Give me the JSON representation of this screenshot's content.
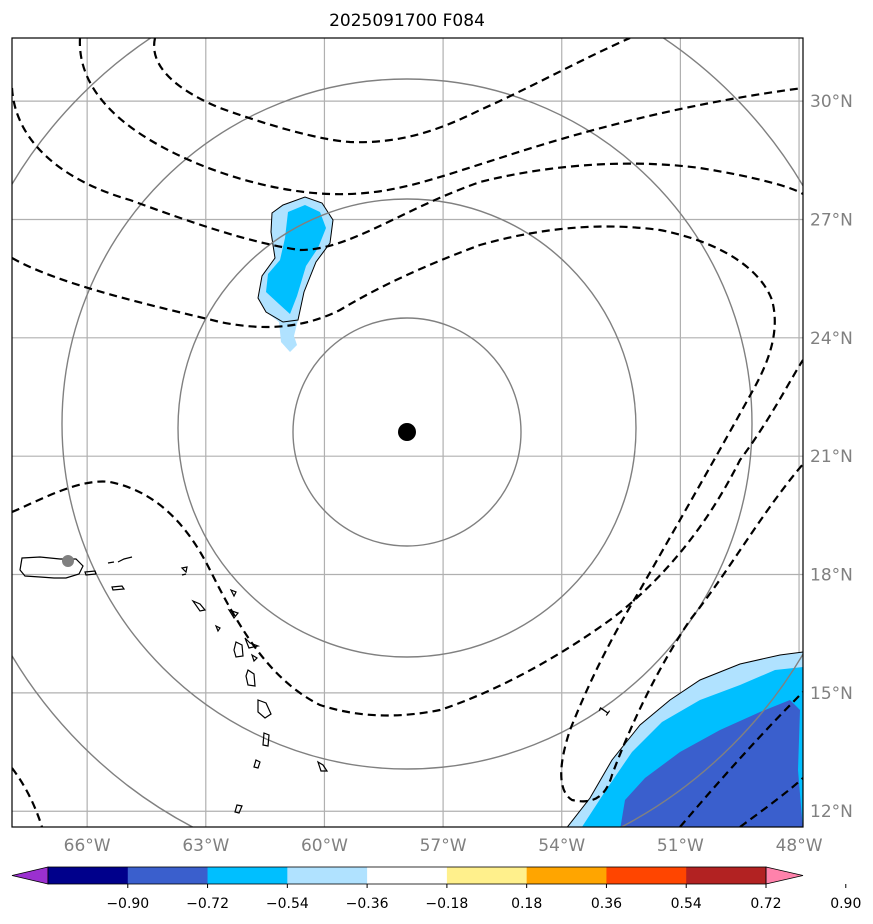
{
  "title": "2025091700 F084",
  "map": {
    "lon_range": [
      -67.9,
      -47.9
    ],
    "lat_range": [
      11.6,
      31.6
    ],
    "lat_labels": [
      "12°N",
      "15°N",
      "18°N",
      "21°N",
      "24°N",
      "27°N",
      "30°N"
    ],
    "lon_labels": [
      "66°W",
      "63°W",
      "60°W",
      "57°W",
      "54°W",
      "51°W",
      "48°W"
    ],
    "lat_values": [
      12,
      15,
      18,
      21,
      24,
      27,
      30
    ],
    "lon_values": [
      -66,
      -63,
      -60,
      -57,
      -54,
      -51,
      -48
    ],
    "gridline_color": "#b0b0b0",
    "range_ring_color": "#808080",
    "center_marker": {
      "lon": -57.5,
      "lat": 21.7,
      "color": "#000000"
    },
    "secondary_marker": {
      "lon": -66.0,
      "lat": 18.4,
      "color": "#808080"
    },
    "contour_label": "1",
    "contour_style": "dashed"
  },
  "colorbar": {
    "tick_labels": [
      "−0.90",
      "−0.72",
      "−0.54",
      "−0.36",
      "−0.18",
      "0.18",
      "0.36",
      "0.54",
      "0.72",
      "0.90"
    ],
    "colors": [
      "#9b30d0",
      "#00008b",
      "#3a5fcd",
      "#00bfff",
      "#b0e2ff",
      "#ffffff",
      "#fff08c",
      "#ffa500",
      "#ff4500",
      "#b22222",
      "#ff82ab"
    ]
  }
}
